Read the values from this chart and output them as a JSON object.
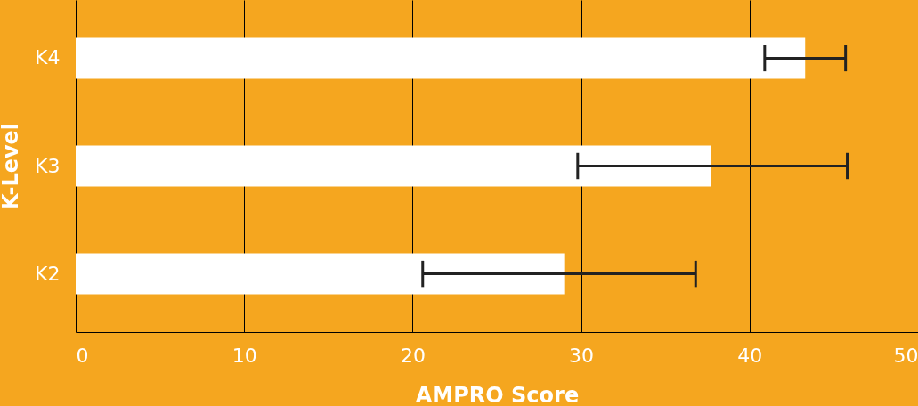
{
  "chart_data": {
    "type": "bar",
    "orientation": "horizontal",
    "xlabel": "AMPRO Score",
    "ylabel": "K-Level",
    "categories": [
      "K4",
      "K3",
      "K2"
    ],
    "values": [
      43.3,
      37.7,
      29.0
    ],
    "errors": [
      [
        40.9,
        45.7
      ],
      [
        29.8,
        45.8
      ],
      [
        20.6,
        36.8
      ]
    ],
    "color": "#ffffff",
    "xlim": [
      0,
      50
    ],
    "xticks": [
      0,
      10,
      20,
      30,
      40,
      50
    ],
    "grid": "x"
  }
}
